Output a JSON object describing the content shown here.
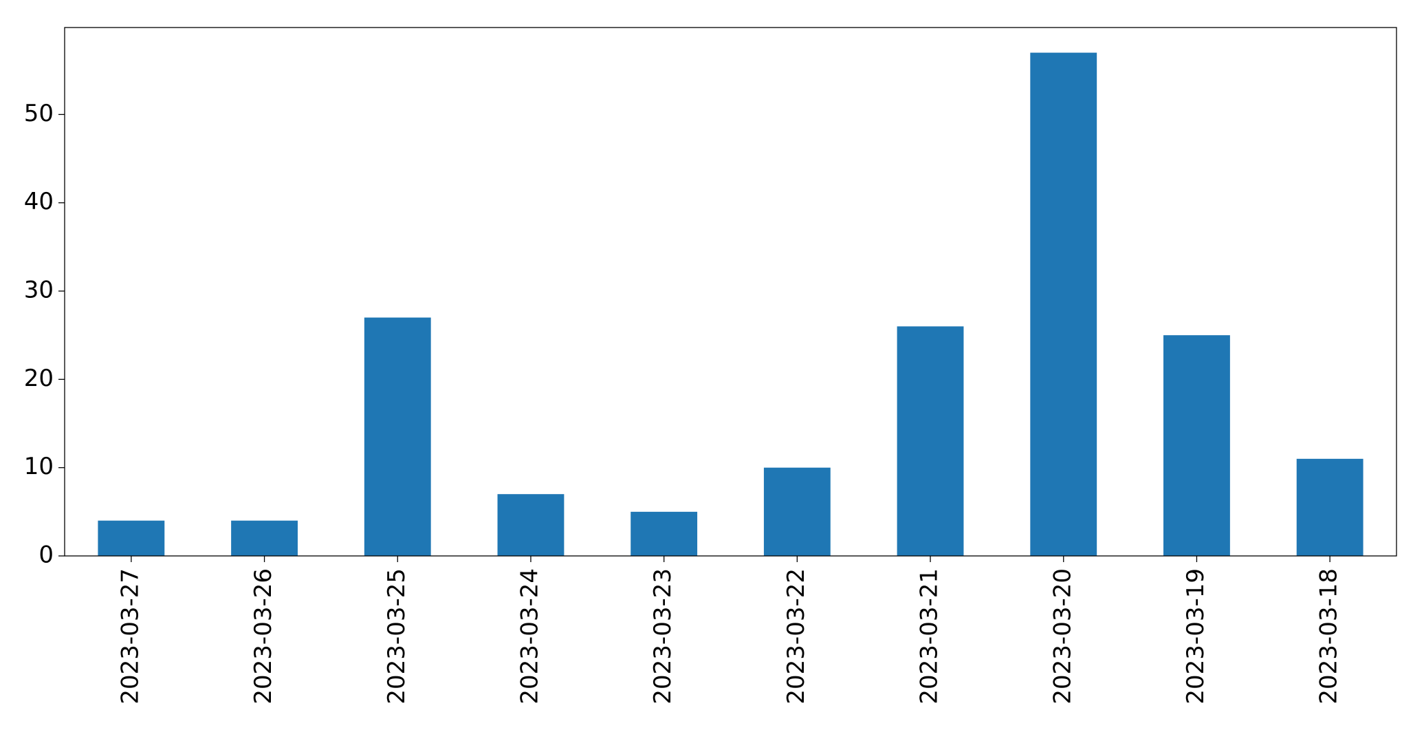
{
  "chart_data": {
    "type": "bar",
    "categories": [
      "2023-03-27",
      "2023-03-26",
      "2023-03-25",
      "2023-03-24",
      "2023-03-23",
      "2023-03-22",
      "2023-03-21",
      "2023-03-20",
      "2023-03-19",
      "2023-03-18"
    ],
    "values": [
      4,
      4,
      27,
      7,
      5,
      10,
      26,
      57,
      25,
      11
    ],
    "color": "#1f77b4",
    "ylim": [
      0,
      59.85
    ],
    "yticks": [
      0,
      10,
      20,
      30,
      40,
      50
    ],
    "grid": false
  }
}
